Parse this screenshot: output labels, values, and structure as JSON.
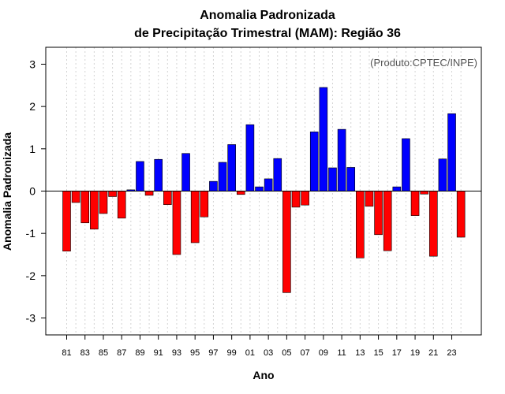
{
  "chart_data": {
    "type": "bar",
    "title_line1": "Anomalia Padronizada",
    "title_line2": "de Precipitação Trimestral (MAM): Região 36",
    "xlabel": "Ano",
    "ylabel": "Anomalia Padronizada",
    "annotation": "(Produto:CPTEC/INPE)",
    "ylim": [
      -3.4,
      3.4
    ],
    "yticks": [
      "-3",
      "-2",
      "-1",
      "0",
      "1",
      "2",
      "3"
    ],
    "xtick_labels": [
      "81",
      "83",
      "85",
      "87",
      "89",
      "91",
      "93",
      "95",
      "97",
      "99",
      "01",
      "03",
      "05",
      "07",
      "09",
      "11",
      "13",
      "15",
      "17",
      "19",
      "21",
      "23"
    ],
    "categories": [
      "81",
      "82",
      "83",
      "84",
      "85",
      "86",
      "87",
      "88",
      "89",
      "90",
      "91",
      "92",
      "93",
      "94",
      "95",
      "96",
      "97",
      "98",
      "99",
      "00",
      "01",
      "02",
      "03",
      "04",
      "05",
      "06",
      "07",
      "08",
      "09",
      "10",
      "11",
      "12",
      "13",
      "14",
      "15",
      "16",
      "17",
      "18",
      "19",
      "20",
      "21",
      "22",
      "23",
      "24"
    ],
    "values": [
      -1.42,
      -0.27,
      -0.75,
      -0.9,
      -0.53,
      -0.13,
      -0.64,
      0.03,
      0.7,
      -0.1,
      0.75,
      -0.32,
      -1.5,
      0.89,
      -1.22,
      -0.61,
      0.23,
      0.68,
      1.1,
      -0.08,
      1.57,
      0.1,
      0.29,
      0.77,
      -2.4,
      -0.38,
      -0.33,
      1.4,
      2.45,
      0.55,
      1.46,
      0.56,
      -1.58,
      -0.36,
      -1.03,
      -1.41,
      0.1,
      1.24,
      -0.58,
      -0.07,
      -1.54,
      0.76,
      1.83,
      -1.09
    ],
    "colors": {
      "positive": "#0000ff",
      "negative": "#ff0000",
      "grid": "#d3d3d3",
      "axis": "#000000"
    },
    "grid": "vertical-dotted",
    "legend": "none"
  }
}
